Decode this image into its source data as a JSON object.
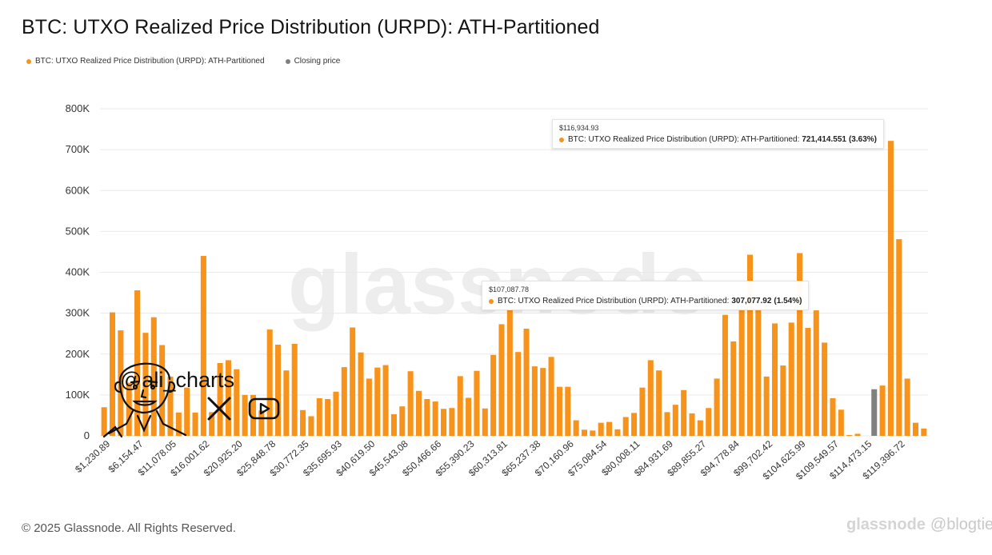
{
  "title": "BTC: UTXO Realized Price Distribution (URPD): ATH-Partitioned",
  "legend": [
    {
      "label": "BTC: UTXO Realized Price Distribution (URPD): ATH-Partitioned",
      "color": "#f7931a"
    },
    {
      "label": "Closing price",
      "color": "#808080"
    }
  ],
  "watermark": "glassnode",
  "footer": "© 2025 Glassnode. All Rights Reserved.",
  "overlay": {
    "handle": "@ali_charts",
    "icons": [
      "x-logo-icon",
      "youtube-icon",
      "avatar-illustration-icon"
    ]
  },
  "attribution": {
    "mark": "glassnode",
    "at": "@",
    "handle": "blogtienso"
  },
  "tooltips": [
    {
      "x": "$116,934.93",
      "series": "BTC: UTXO Realized Price Distribution (URPD): ATH-Partitioned",
      "value": "721,414.551",
      "pct": "(3.63%)"
    },
    {
      "x": "$107,087.78",
      "series": "BTC: UTXO Realized Price Distribution (URPD): ATH-Partitioned",
      "value": "307,077.92",
      "pct": "(1.54%)"
    }
  ],
  "chart_data": {
    "type": "bar",
    "ylim": [
      0,
      800000
    ],
    "yticks": [
      0,
      100000,
      200000,
      300000,
      400000,
      500000,
      600000,
      700000,
      800000
    ],
    "ytick_labels": [
      "0",
      "100K",
      "200K",
      "300K",
      "400K",
      "500K",
      "600K",
      "700K",
      "800K"
    ],
    "xtick_labels": [
      "$1,230.89",
      "$6,154.47",
      "$11,078.05",
      "$16,001.62",
      "$20,925.20",
      "$25,848.78",
      "$30,772.35",
      "$35,695.93",
      "$40,619.50",
      "$45,543.08",
      "$50,466.66",
      "$55,390.23",
      "$60,313.81",
      "$65,237.38",
      "$70,160.96",
      "$75,084.54",
      "$80,008.11",
      "$84,931.69",
      "$89,855.27",
      "$94,778.84",
      "$99,702.42",
      "$104,625.99",
      "$109,549.57",
      "$114,473.15",
      "$119,396.72"
    ],
    "xtick_every": 4,
    "closing_price_index": 93,
    "grid": true,
    "legend_position": "top-left",
    "series": [
      {
        "name": "BTC: UTXO Realized Price Distribution (URPD): ATH-Partitioned",
        "color": "#f7931a",
        "values": [
          70000,
          302000,
          258000,
          130000,
          356000,
          252000,
          290000,
          222000,
          145000,
          57000,
          118000,
          57000,
          440000,
          58000,
          178000,
          185000,
          163000,
          100000,
          100000,
          62000,
          260000,
          223000,
          160000,
          225000,
          63000,
          48000,
          92000,
          90000,
          108000,
          168000,
          265000,
          204000,
          140000,
          167000,
          173000,
          53000,
          72000,
          158000,
          110000,
          90000,
          84000,
          66000,
          68000,
          146000,
          93000,
          159000,
          67000,
          198000,
          273000,
          308000,
          205000,
          262000,
          170000,
          166000,
          193000,
          120000,
          120000,
          38000,
          15000,
          13000,
          32000,
          34000,
          16000,
          46000,
          56000,
          118000,
          185000,
          160000,
          58000,
          76000,
          112000,
          55000,
          38000,
          68000,
          140000,
          296000,
          231000,
          307000,
          443000,
          307000,
          145000,
          275000,
          172000,
          277000,
          447000,
          264000,
          307000,
          228000,
          92000,
          64000,
          2000,
          5000,
          0,
          114000,
          123000,
          721414,
          481000,
          140000,
          32000,
          18000
        ]
      }
    ]
  }
}
